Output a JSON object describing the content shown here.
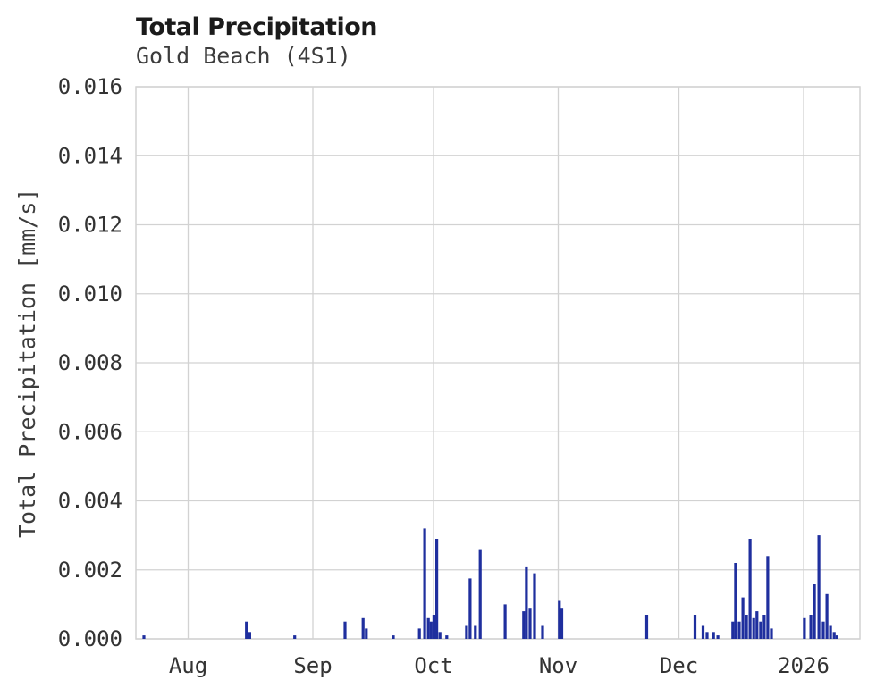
{
  "chart_data": {
    "type": "bar",
    "title": "Total Precipitation",
    "subtitle": "Gold Beach (4S1)",
    "ylabel": "Total Precipitation [mm/s]",
    "ylim": [
      0,
      0.016
    ],
    "ytick_step": 0.002,
    "ytick_format_decimals": 3,
    "grid": true,
    "legend": "none",
    "x_unit": "days_from_plot_start",
    "x_domain_days": [
      0,
      180
    ],
    "xticks": [
      {
        "label": "Aug",
        "day": 13
      },
      {
        "label": "Sep",
        "day": 44
      },
      {
        "label": "Oct",
        "day": 74
      },
      {
        "label": "Nov",
        "day": 105
      },
      {
        "label": "Dec",
        "day": 135
      },
      {
        "label": "2026",
        "day": 166
      }
    ],
    "colors": {
      "bar": "#1f2f9e",
      "grid": "#d2d2d2",
      "text": "#333333",
      "title": "#1b1b1b",
      "background": "#ffffff"
    },
    "series": [
      {
        "name": "Total Precipitation",
        "color": "#1f2f9e",
        "points": [
          [
            2.0,
            0.0001
          ],
          [
            27.5,
            0.0005
          ],
          [
            28.3,
            0.0002
          ],
          [
            39.5,
            0.0001
          ],
          [
            52.0,
            0.0005
          ],
          [
            56.5,
            0.0006
          ],
          [
            57.3,
            0.0003
          ],
          [
            64.0,
            0.0001
          ],
          [
            70.5,
            0.0003
          ],
          [
            71.8,
            0.0032
          ],
          [
            72.7,
            0.0006
          ],
          [
            73.4,
            0.0005
          ],
          [
            74.1,
            0.0007
          ],
          [
            74.8,
            0.0029
          ],
          [
            75.6,
            0.0002
          ],
          [
            77.3,
            0.0001
          ],
          [
            82.2,
            0.0004
          ],
          [
            83.1,
            0.00175
          ],
          [
            84.4,
            0.0004
          ],
          [
            85.6,
            0.0026
          ],
          [
            91.8,
            0.001
          ],
          [
            96.4,
            0.0008
          ],
          [
            97.1,
            0.0021
          ],
          [
            98.0,
            0.0009
          ],
          [
            99.1,
            0.0019
          ],
          [
            101.1,
            0.0004
          ],
          [
            105.3,
            0.0011
          ],
          [
            105.9,
            0.0009
          ],
          [
            127.0,
            0.0007
          ],
          [
            139.0,
            0.0007
          ],
          [
            141.0,
            0.0004
          ],
          [
            142.0,
            0.0002
          ],
          [
            143.6,
            0.0002
          ],
          [
            144.7,
            0.0001
          ],
          [
            148.4,
            0.0005
          ],
          [
            149.1,
            0.0022
          ],
          [
            150.0,
            0.0005
          ],
          [
            150.9,
            0.0012
          ],
          [
            151.8,
            0.0007
          ],
          [
            152.7,
            0.0029
          ],
          [
            153.6,
            0.0006
          ],
          [
            154.4,
            0.0008
          ],
          [
            155.3,
            0.0005
          ],
          [
            156.2,
            0.0007
          ],
          [
            157.1,
            0.0024
          ],
          [
            158.0,
            0.0003
          ],
          [
            166.2,
            0.0006
          ],
          [
            167.8,
            0.0007
          ],
          [
            168.7,
            0.0016
          ],
          [
            169.8,
            0.003
          ],
          [
            170.9,
            0.0005
          ],
          [
            171.8,
            0.0013
          ],
          [
            172.7,
            0.0004
          ],
          [
            173.6,
            0.0002
          ],
          [
            174.3,
            0.0001
          ]
        ]
      }
    ]
  }
}
